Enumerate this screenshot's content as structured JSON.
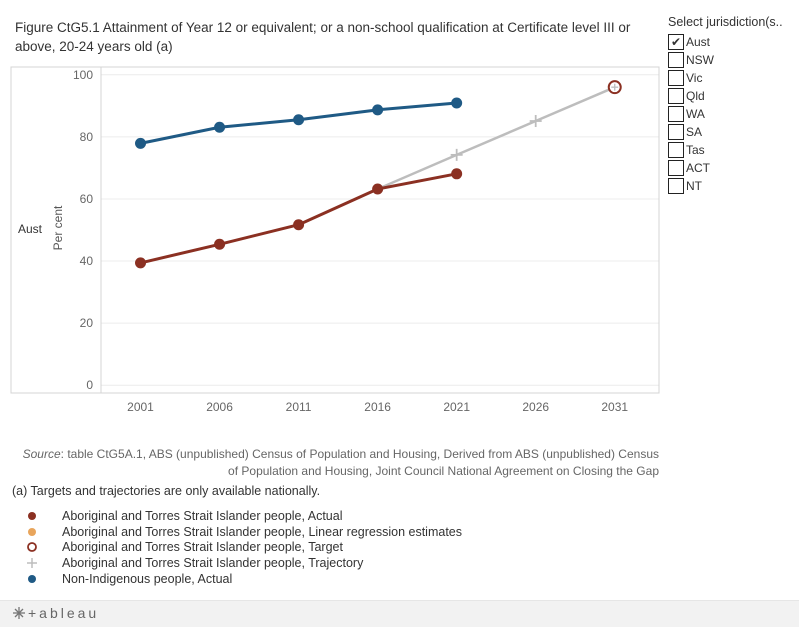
{
  "title": "Figure CtG5.1 Attainment of Year 12 or equivalent; or a non-school qualification at Certificate level III or above, 20-24 years old (a)",
  "row_label": "Aust",
  "filter": {
    "title": "Select jurisdiction(s..",
    "items": [
      {
        "label": "Aust",
        "checked": true
      },
      {
        "label": "NSW",
        "checked": false
      },
      {
        "label": "Vic",
        "checked": false
      },
      {
        "label": "Qld",
        "checked": false
      },
      {
        "label": "WA",
        "checked": false
      },
      {
        "label": "SA",
        "checked": false
      },
      {
        "label": "Tas",
        "checked": false
      },
      {
        "label": "ACT",
        "checked": false
      },
      {
        "label": "NT",
        "checked": false
      }
    ],
    "check_glyph": "✔"
  },
  "source": {
    "label": "Source",
    "text": ": table CtG5A.1, ABS (unpublished) Census of Population and Housing, Derived from ABS (unpublished) Census of Population and Housing, Joint Council National Agreement on Closing the Gap"
  },
  "note": "(a) Targets and trajectories are only available nationally.",
  "legend": [
    {
      "label": "Aboriginal and Torres Strait Islander people, Actual",
      "symbol": "dot",
      "color": "#8b3022"
    },
    {
      "label": "Aboriginal and Torres Strait Islander people, Linear regression estimates",
      "symbol": "dot",
      "color": "#e8a55c"
    },
    {
      "label": "Aboriginal and Torres Strait Islander people, Target",
      "symbol": "ring",
      "color": "#8b3022"
    },
    {
      "label": "Aboriginal and Torres Strait Islander people, Trajectory",
      "symbol": "plus",
      "color": "#bdbdbd"
    },
    {
      "label": "Non-Indigenous people, Actual",
      "symbol": "dot",
      "color": "#1f5a85"
    }
  ],
  "footer": {
    "logo_text": "+ableau"
  },
  "chart_data": {
    "type": "line",
    "title": "Figure CtG5.1 Attainment of Year 12 or equivalent; or a non-school qualification at Certificate level III or above, 20-24 years old (a)",
    "xlabel": "",
    "ylabel": "Per cent",
    "x_ticks": [
      2001,
      2006,
      2011,
      2016,
      2021,
      2026,
      2031
    ],
    "y_ticks": [
      0,
      20,
      40,
      60,
      80,
      100
    ],
    "xlim": [
      1998.5,
      2033.8
    ],
    "ylim": [
      -2.5,
      102.5
    ],
    "series": [
      {
        "name": "Aboriginal and Torres Strait Islander people, Trajectory",
        "color": "#bdbdbd",
        "marker": "plus",
        "x": [
          2016,
          2021,
          2026,
          2031
        ],
        "y": [
          63.2,
          74.2,
          85.1,
          96.0
        ]
      },
      {
        "name": "Aboriginal and Torres Strait Islander people, Actual",
        "color": "#8b3022",
        "marker": "dot",
        "x": [
          2001,
          2006,
          2011,
          2016,
          2021
        ],
        "y": [
          39.4,
          45.4,
          51.7,
          63.2,
          68.1
        ]
      },
      {
        "name": "Non-Indigenous people, Actual",
        "color": "#1f5a85",
        "marker": "dot",
        "x": [
          2001,
          2006,
          2011,
          2016,
          2021
        ],
        "y": [
          77.9,
          83.1,
          85.5,
          88.7,
          90.9
        ]
      },
      {
        "name": "Aboriginal and Torres Strait Islander people, Target",
        "color": "#8b3022",
        "marker": "ring",
        "x": [
          2031
        ],
        "y": [
          96.0
        ]
      }
    ]
  }
}
